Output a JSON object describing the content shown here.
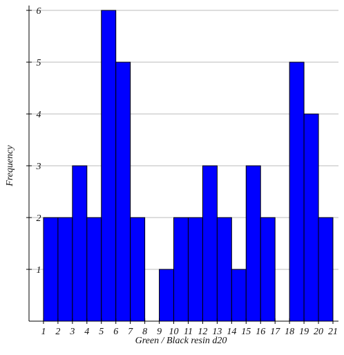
{
  "chart_data": {
    "type": "histogram",
    "xlabel": "Green / Black resin d20",
    "ylabel": "Frequency",
    "bins": [
      1,
      2,
      3,
      4,
      5,
      6,
      7,
      8,
      9,
      10,
      11,
      12,
      13,
      14,
      15,
      16,
      17,
      18,
      19,
      20,
      21
    ],
    "counts": [
      2,
      2,
      3,
      2,
      6,
      5,
      2,
      0,
      1,
      2,
      2,
      3,
      2,
      1,
      3,
      2,
      0,
      5,
      4,
      2
    ],
    "color": "#0000ff",
    "xlim": [
      0,
      21
    ],
    "xticks": [
      1,
      2,
      3,
      4,
      5,
      6,
      7,
      8,
      9,
      10,
      11,
      12,
      13,
      14,
      15,
      16,
      17,
      18,
      19,
      20,
      21
    ],
    "ylim": [
      0,
      6
    ],
    "yticks": [
      1,
      2,
      3,
      4,
      5,
      6
    ],
    "grid": true
  }
}
